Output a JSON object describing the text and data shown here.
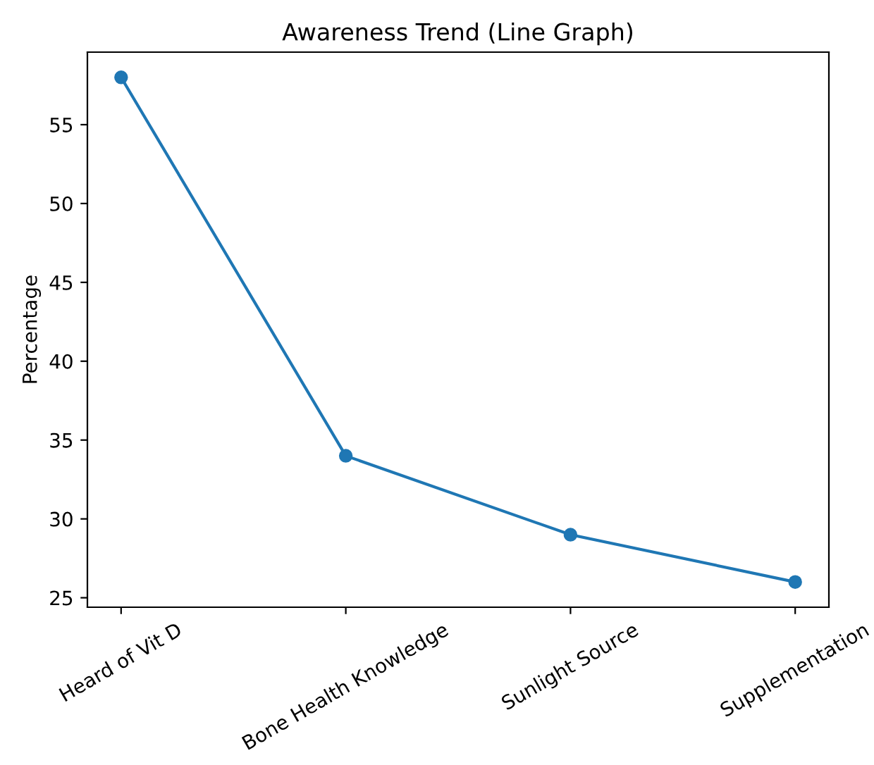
{
  "chart_data": {
    "type": "line",
    "title": "Awareness Trend (Line Graph)",
    "ylabel": "Percentage",
    "categories": [
      "Heard of Vit D",
      "Bone Health Knowledge",
      "Sunlight Source",
      "Supplementation"
    ],
    "series": [
      {
        "color": "#1f77b4",
        "values": [
          58,
          34,
          29,
          26
        ]
      }
    ],
    "ylim": [
      24.4,
      59.6
    ],
    "yticks": [
      25,
      30,
      35,
      40,
      45,
      50,
      55
    ],
    "marker": "circle",
    "line_style": "solid",
    "grid": false,
    "legend": false
  }
}
